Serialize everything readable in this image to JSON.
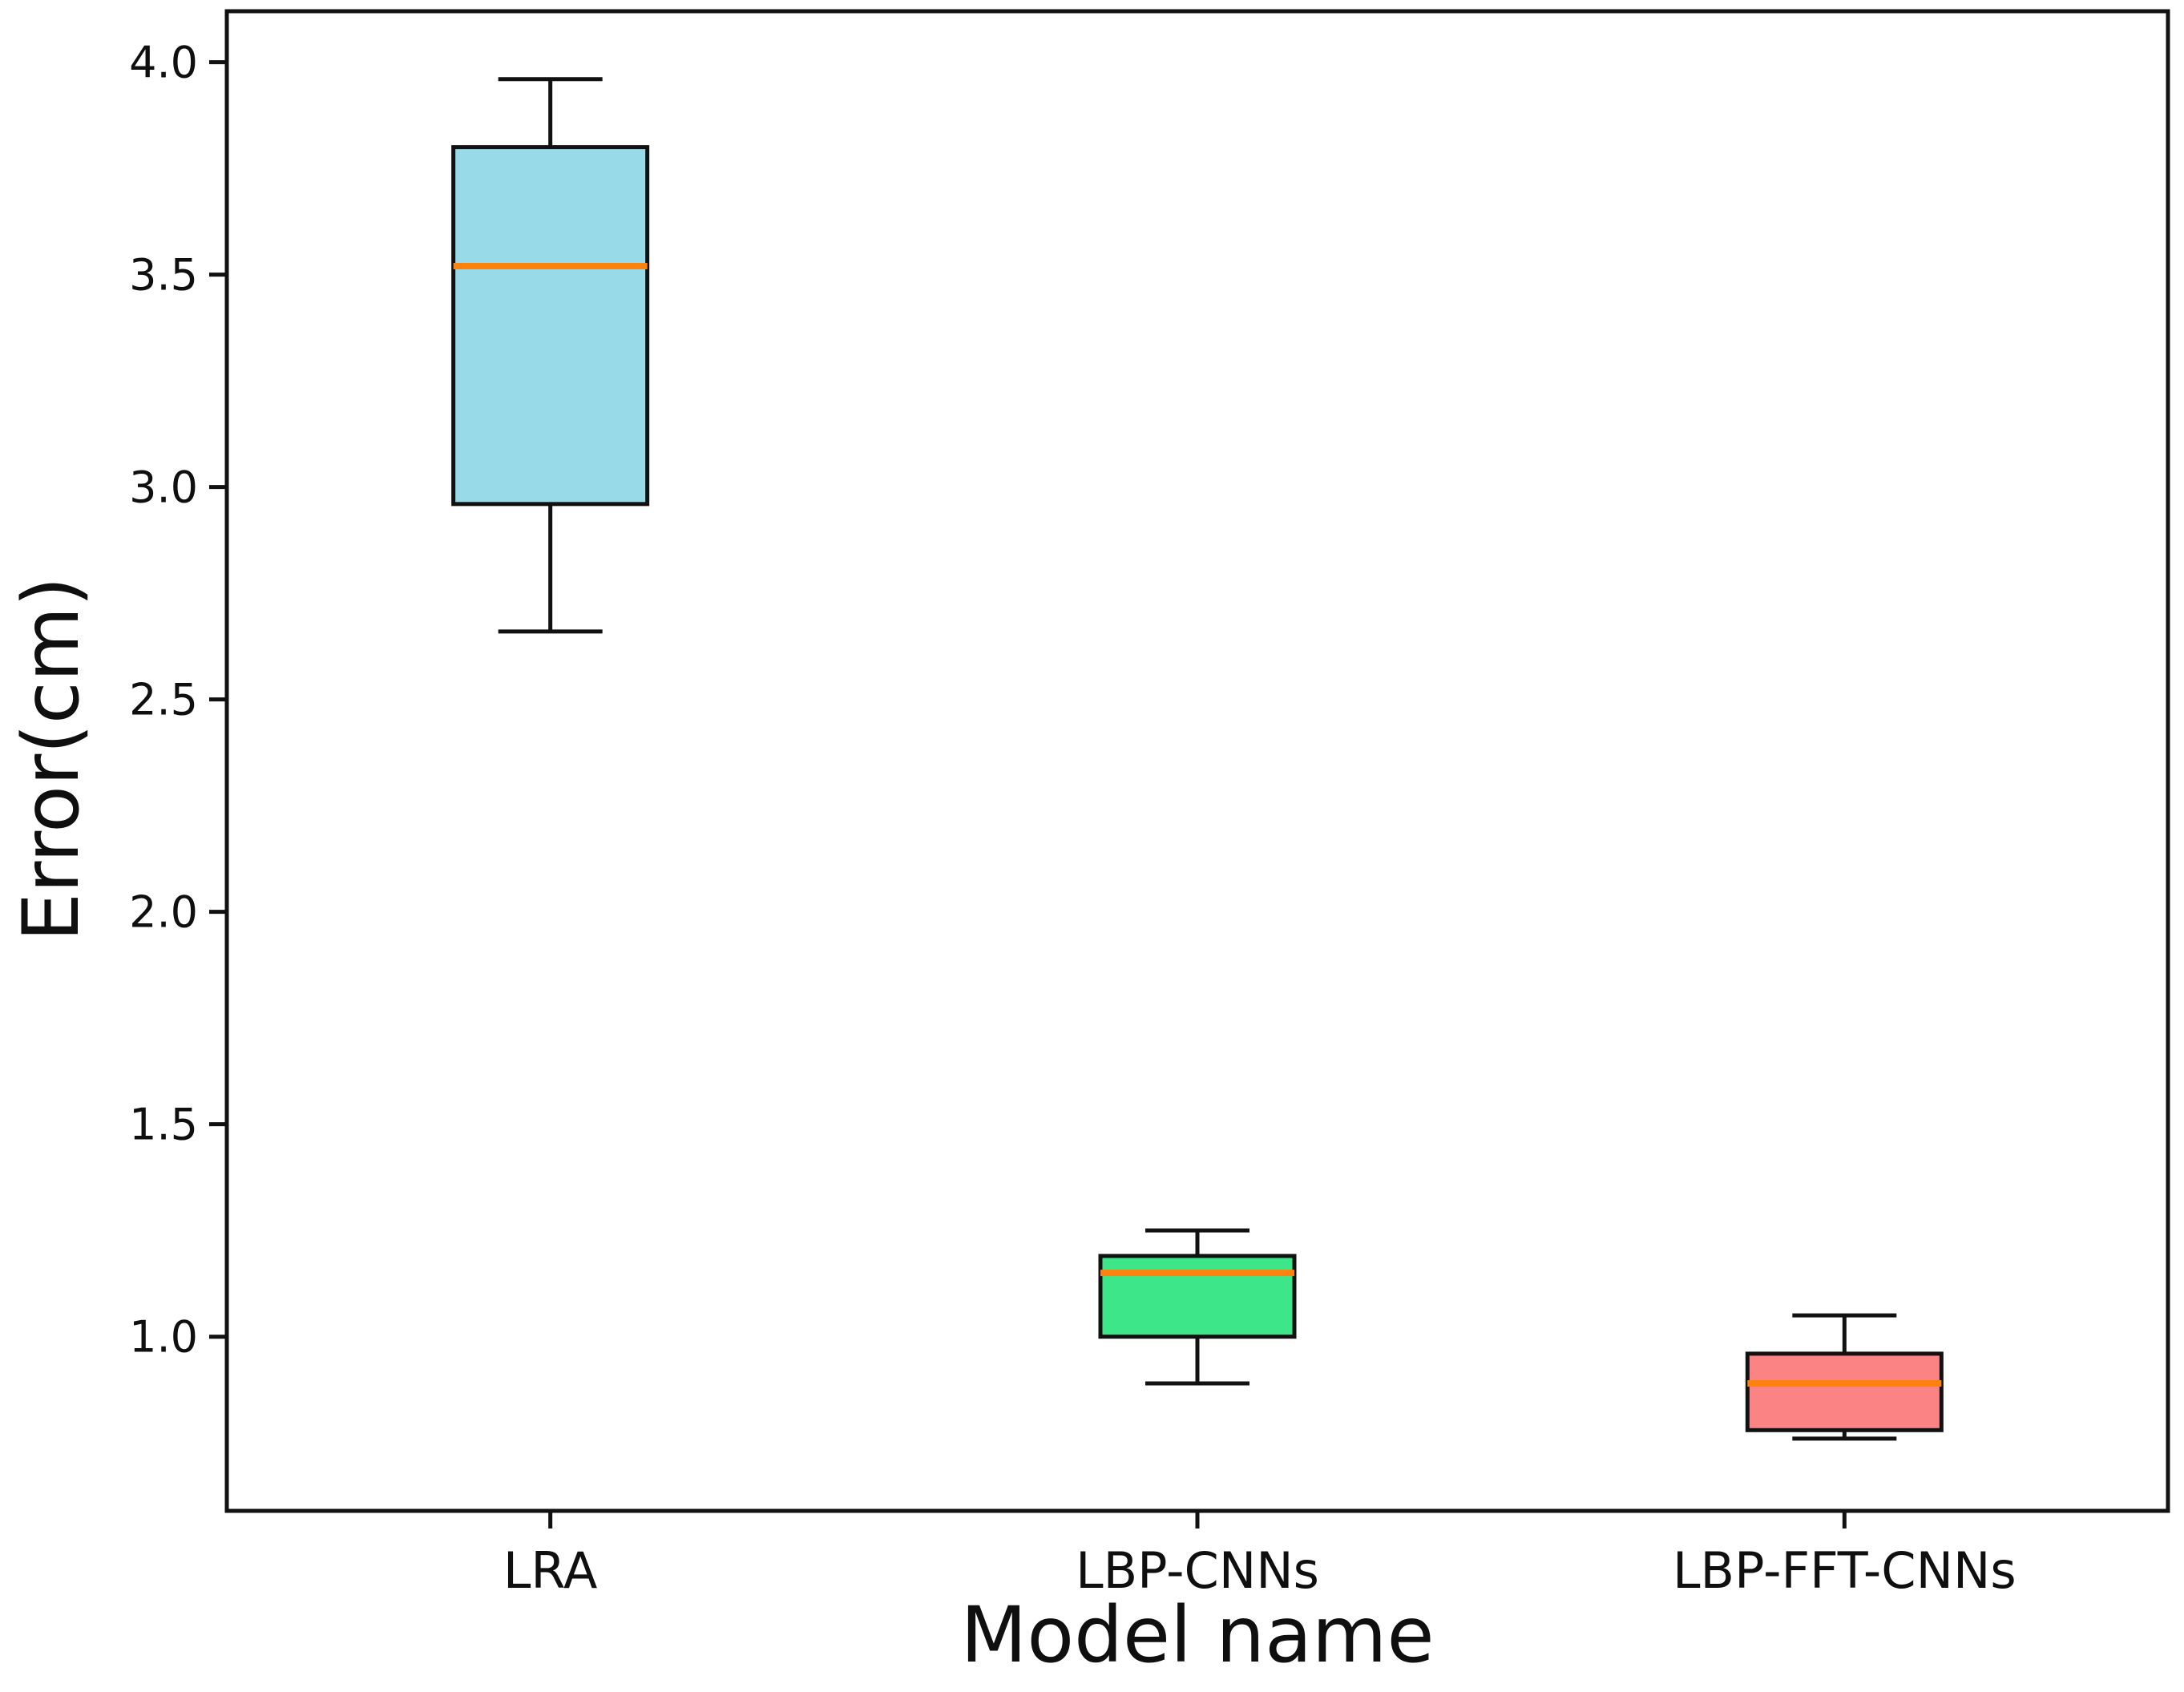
{
  "figure": {
    "background": "#ffffff"
  },
  "chart_data": {
    "type": "boxplot",
    "title": "",
    "xlabel": "Model name",
    "ylabel": "Error(cm)",
    "categories": [
      "LRA",
      "LBP-CNNs",
      "LBP-FFT-CNNs"
    ],
    "ylim": [
      0.59,
      4.12
    ],
    "y_ticks": [
      {
        "v": 1.0,
        "label": "1.0"
      },
      {
        "v": 1.5,
        "label": "1.5"
      },
      {
        "v": 2.0,
        "label": "2.0"
      },
      {
        "v": 2.5,
        "label": "2.5"
      },
      {
        "v": 3.0,
        "label": "3.0"
      },
      {
        "v": 3.5,
        "label": "3.5"
      },
      {
        "v": 4.0,
        "label": "4.0"
      }
    ],
    "grid": false,
    "legend": null,
    "colors": {
      "box_edge": "#111111",
      "median": "#ff820e",
      "fills": [
        "#98dae8",
        "#3ee68a",
        "#fc8383"
      ],
      "text": "#0f0f0f"
    },
    "series": [
      {
        "name": "LRA",
        "whisker_low": 2.66,
        "q1": 2.96,
        "median": 3.52,
        "q3": 3.8,
        "whisker_high": 3.96
      },
      {
        "name": "LBP-CNNs",
        "whisker_low": 0.89,
        "q1": 1.0,
        "median": 1.15,
        "q3": 1.19,
        "whisker_high": 1.25
      },
      {
        "name": "LBP-FFT-CNNs",
        "whisker_low": 0.76,
        "q1": 0.78,
        "median": 0.89,
        "q3": 0.96,
        "whisker_high": 1.05
      }
    ]
  }
}
